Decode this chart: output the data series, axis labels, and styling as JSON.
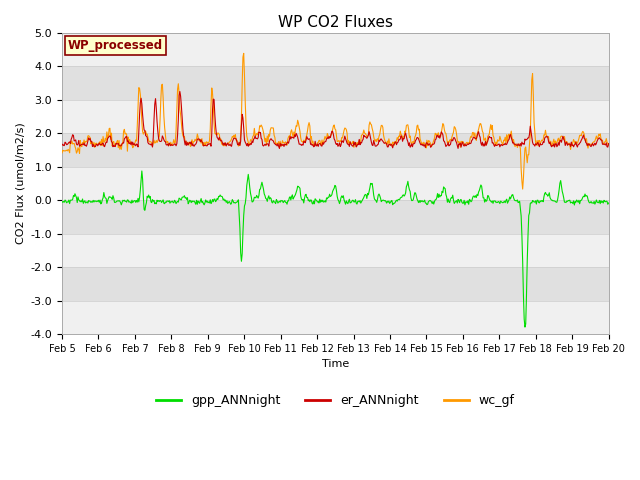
{
  "title": "WP CO2 Fluxes",
  "xlabel": "Time",
  "ylabel": "CO2 Flux (umol/m2/s)",
  "ylim": [
    -4.0,
    5.0
  ],
  "yticks": [
    -4.0,
    -3.0,
    -2.0,
    -1.0,
    0.0,
    1.0,
    2.0,
    3.0,
    4.0,
    5.0
  ],
  "xstart": 5.0,
  "xend": 20.0,
  "xtick_positions": [
    5,
    6,
    7,
    8,
    9,
    10,
    11,
    12,
    13,
    14,
    15,
    16,
    17,
    18,
    19,
    20
  ],
  "xtick_labels": [
    "Feb 5",
    "Feb 6",
    "Feb 7",
    "Feb 8",
    "Feb 9",
    "Feb 10",
    "Feb 11",
    "Feb 12",
    "Feb 13",
    "Feb 14",
    "Feb 15",
    "Feb 16",
    "Feb 17",
    "Feb 18",
    "Feb 19",
    "Feb 20"
  ],
  "color_gpp": "#00dd00",
  "color_er": "#cc0000",
  "color_wc": "#ff9900",
  "label_gpp": "gpp_ANNnight",
  "label_er": "er_ANNnight",
  "label_wc": "wc_gf",
  "annotation_text": "WP_processed",
  "annotation_color": "#8b0000",
  "annotation_bg": "#ffffcc",
  "plot_bg": "#e8e8e8",
  "fig_bg": "#ffffff",
  "linewidth": 0.8,
  "band_light": "#f0f0f0",
  "band_dark": "#e0e0e0"
}
